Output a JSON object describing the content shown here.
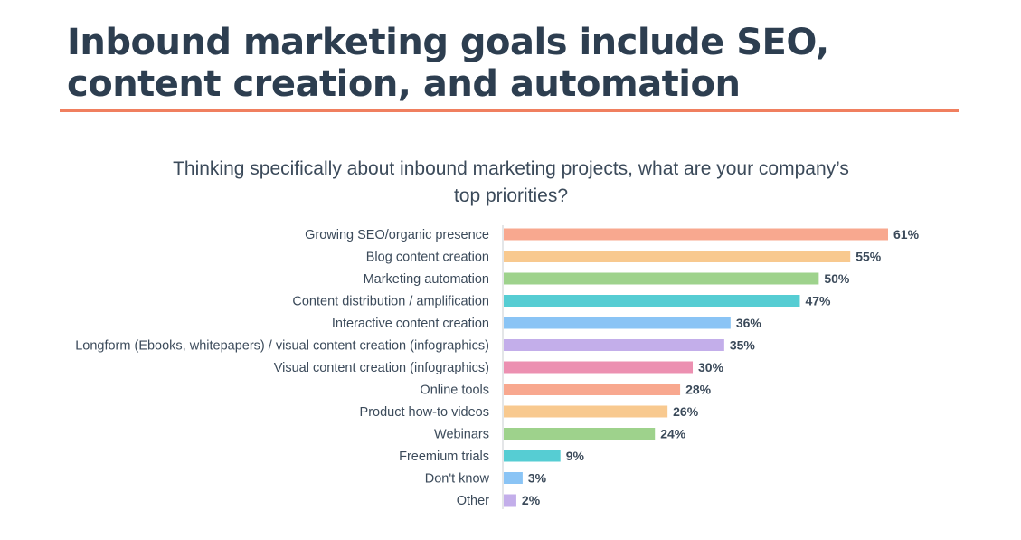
{
  "headline": "Inbound marketing goals include SEO, content creation, and automation",
  "accent_color": "#f07f5f",
  "chart_data": {
    "type": "bar",
    "orientation": "horizontal",
    "title": "Thinking specifically about inbound marketing projects, what are your company’s top priorities?",
    "categories": [
      "Growing SEO/organic presence",
      "Blog content creation",
      "Marketing automation",
      "Content distribution / amplification",
      "Interactive content creation",
      "Longform (Ebooks, whitepapers) / visual content creation (infographics)",
      "Visual content creation (infographics)",
      "Online tools",
      "Product how-to videos",
      "Webinars",
      "Freemium trials",
      "Don't know",
      "Other"
    ],
    "values": [
      61,
      55,
      50,
      47,
      36,
      35,
      30,
      28,
      26,
      24,
      9,
      3,
      2
    ],
    "value_labels": [
      "61%",
      "55%",
      "50%",
      "47%",
      "36%",
      "35%",
      "30%",
      "28%",
      "26%",
      "24%",
      "9%",
      "3%",
      "2%"
    ],
    "colors": [
      "#f8a88f",
      "#f8c98f",
      "#9ed28c",
      "#56cdd3",
      "#8ac4f5",
      "#c3aeea",
      "#ec90b1",
      "#f8a88f",
      "#f8c98f",
      "#9ed28c",
      "#56cdd3",
      "#8ac4f5",
      "#c3aeea"
    ],
    "xlim": [
      0,
      61
    ],
    "grid": false,
    "legend": "none"
  }
}
